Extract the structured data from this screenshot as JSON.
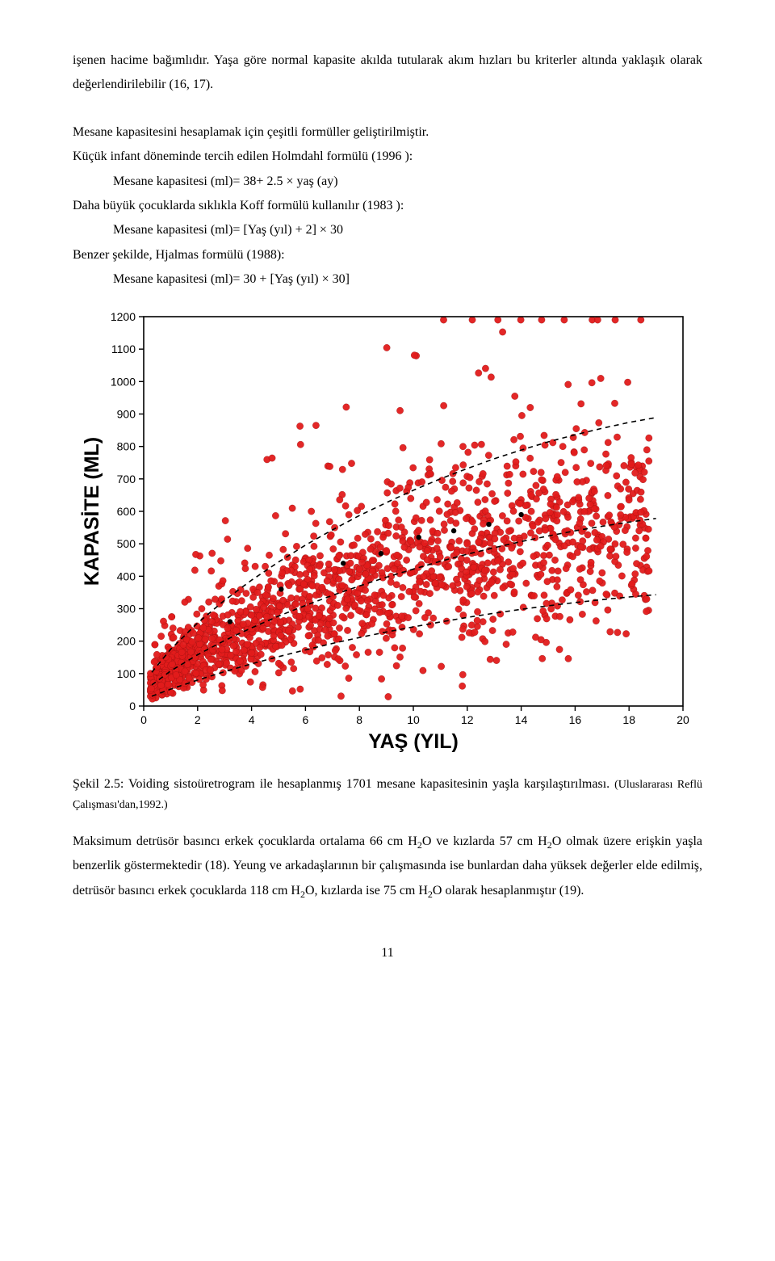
{
  "para1": "işenen hacime bağımlıdır. Yaşa göre normal kapasite akılda tutularak akım hızları bu kriterler altında yaklaşık olarak değerlendirilebilir (16, 17).",
  "para2": "Mesane kapasitesini hesaplamak için çeşitli formüller geliştirilmiştir.",
  "para3": "Küçük infant döneminde tercih edilen Holmdahl formülü (1996 ):",
  "formula1": "Mesane kapasitesi (ml)= 38+ 2.5 × yaş (ay)",
  "para4": "Daha büyük çocuklarda sıklıkla Koff formülü kullanılır (1983 ):",
  "formula2": "Mesane kapasitesi (ml)= [Yaş (yıl) + 2] × 30",
  "para5": "Benzer şekilde, Hjalmas formülü (1988):",
  "formula3": "Mesane kapasitesi (ml)= 30 + [Yaş (yıl) × 30]",
  "caption_lead": "Şekil 2.5:",
  "caption_body": " Voiding sistoüretrogram ile hesaplanmış 1701 mesane kapasitesinin yaşla karşılaştırılması. ",
  "caption_src": "(Uluslararası Reflü Çalışması'dan,1992.)",
  "para6a": "Maksimum detrüsör basıncı erkek çocuklarda ortalama 66 cm H",
  "para6b": "O ve kızlarda 57 cm H",
  "para6c": "O olmak üzere erişkin yaşla benzerlik göstermektedir (18). Yeung ve arkadaşlarının bir çalışmasında ise bunlardan daha yüksek değerler elde edilmiş, detrüsör basıncı erkek çocuklarda 118 cm H",
  "para6d": "O, kızlarda ise 75 cm H",
  "para6e": "O olarak hesaplanmıştır (19).",
  "sub2": "2",
  "page_number": "11",
  "chart": {
    "type": "scatter",
    "x_label": "YAŞ (YIL)",
    "y_label": "KAPASİTE (ML)",
    "xlim": [
      0,
      20
    ],
    "ylim": [
      0,
      1200
    ],
    "x_ticks": [
      0,
      2,
      4,
      6,
      8,
      10,
      12,
      14,
      16,
      18,
      20
    ],
    "y_ticks": [
      0,
      100,
      200,
      300,
      400,
      500,
      600,
      700,
      800,
      900,
      1000,
      1100,
      1200
    ],
    "point_color": "#e21b1b",
    "point_radius": 4.2,
    "point_opacity": 0.95,
    "black_point_color": "#000000",
    "black_point_radius": 3.2,
    "axis_color": "#000000",
    "tick_font_size": 14,
    "background_color": "#ffffff",
    "n_points": 1701,
    "x_scale": "linear",
    "y_scale": "linear",
    "curves": [
      {
        "name": "p5",
        "color": "#000",
        "width": 1.6,
        "dash": "6,5",
        "pts": [
          [
            0.3,
            30
          ],
          [
            1,
            52
          ],
          [
            2,
            80
          ],
          [
            3,
            106
          ],
          [
            4,
            130
          ],
          [
            5,
            152
          ],
          [
            6,
            173
          ],
          [
            7,
            193
          ],
          [
            8,
            211
          ],
          [
            9,
            228
          ],
          [
            10,
            244
          ],
          [
            11,
            259
          ],
          [
            12,
            273
          ],
          [
            13,
            286
          ],
          [
            14,
            298
          ],
          [
            15,
            309
          ],
          [
            16,
            319
          ],
          [
            17,
            328
          ],
          [
            18,
            336
          ],
          [
            19,
            343
          ]
        ]
      },
      {
        "name": "p50",
        "color": "#000",
        "width": 1.6,
        "dash": "6,5",
        "pts": [
          [
            0.3,
            65
          ],
          [
            1,
            108
          ],
          [
            2,
            158
          ],
          [
            3,
            202
          ],
          [
            4,
            241
          ],
          [
            5,
            277
          ],
          [
            6,
            310
          ],
          [
            7,
            341
          ],
          [
            8,
            370
          ],
          [
            9,
            397
          ],
          [
            10,
            422
          ],
          [
            11,
            446
          ],
          [
            12,
            468
          ],
          [
            13,
            488
          ],
          [
            14,
            507
          ],
          [
            15,
            524
          ],
          [
            16,
            540
          ],
          [
            17,
            554
          ],
          [
            18,
            567
          ],
          [
            19,
            578
          ]
        ]
      },
      {
        "name": "p95",
        "color": "#000",
        "width": 1.6,
        "dash": "6,5",
        "pts": [
          [
            0.3,
            104
          ],
          [
            1,
            175
          ],
          [
            2,
            256
          ],
          [
            3,
            326
          ],
          [
            4,
            388
          ],
          [
            5,
            444
          ],
          [
            6,
            496
          ],
          [
            7,
            543
          ],
          [
            8,
            587
          ],
          [
            9,
            627
          ],
          [
            10,
            665
          ],
          [
            11,
            700
          ],
          [
            12,
            732
          ],
          [
            13,
            762
          ],
          [
            14,
            789
          ],
          [
            15,
            814
          ],
          [
            16,
            836
          ],
          [
            17,
            856
          ],
          [
            18,
            874
          ],
          [
            19,
            889
          ]
        ]
      }
    ]
  }
}
